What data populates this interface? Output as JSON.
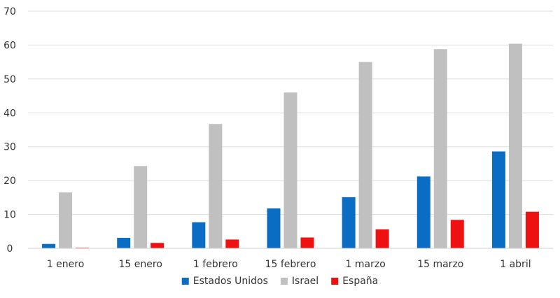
{
  "chart_data": {
    "type": "bar",
    "categories": [
      "1 enero",
      "15 enero",
      "1 febrero",
      "15 febrero",
      "1 marzo",
      "15 marzo",
      "1 abril"
    ],
    "series": [
      {
        "name": "Estados Unidos",
        "color": "#0b6cc4",
        "values": [
          1.3,
          3.1,
          7.7,
          11.8,
          15.1,
          21.2,
          28.6
        ]
      },
      {
        "name": "Israel",
        "color": "#c0c0c0",
        "values": [
          16.5,
          24.3,
          36.7,
          46.0,
          55.0,
          58.8,
          60.4
        ]
      },
      {
        "name": "España",
        "color": "#ee1111",
        "values": [
          0.1,
          1.6,
          2.6,
          3.2,
          5.6,
          8.4,
          10.8
        ]
      }
    ],
    "ylim": [
      0,
      70
    ],
    "yticks": [
      0,
      10,
      20,
      30,
      40,
      50,
      60,
      70
    ],
    "grid": true,
    "legend": "bottom"
  }
}
